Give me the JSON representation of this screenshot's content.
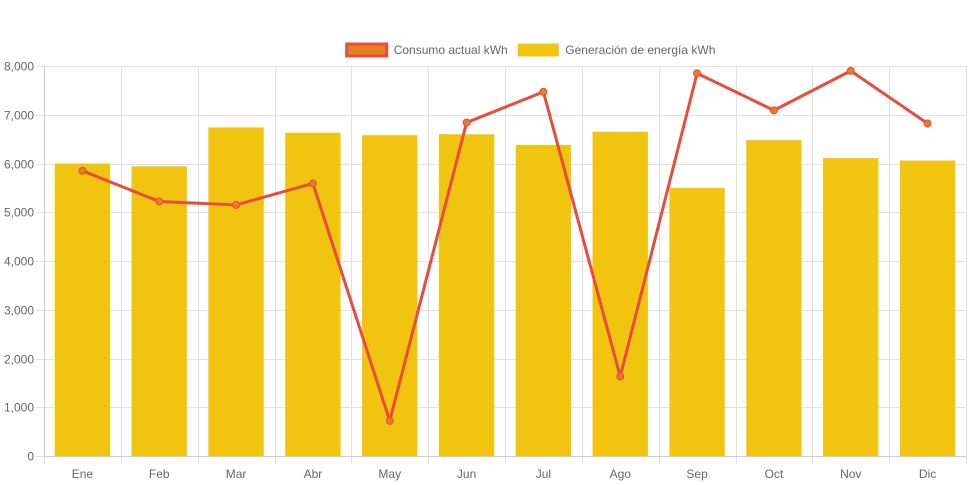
{
  "chart_data": {
    "type": "bar",
    "title": "",
    "xlabel": "",
    "ylabel": "",
    "categories": [
      "Ene",
      "Feb",
      "Mar",
      "Abr",
      "May",
      "Jun",
      "Jul",
      "Ago",
      "Sep",
      "Oct",
      "Nov",
      "Dic"
    ],
    "ylim": [
      0,
      8000
    ],
    "yticks": [
      0,
      1000,
      2000,
      3000,
      4000,
      5000,
      6000,
      7000,
      8000
    ],
    "ytick_labels": [
      "0",
      "1,000",
      "2,000",
      "3,000",
      "4,000",
      "5,000",
      "6,000",
      "7,000",
      "8,000"
    ],
    "grid": true,
    "legend_position": "top-center",
    "series": [
      {
        "name": "Consumo actual kWh",
        "type": "line",
        "color": "#e74c3c",
        "point_color": "#e67e22",
        "values": [
          5850,
          5220,
          5150,
          5590,
          720,
          6840,
          7470,
          1630,
          7850,
          7090,
          7900,
          6820
        ]
      },
      {
        "name": "Generación de energía kWh",
        "type": "bar",
        "color": "#f1c40f",
        "values": [
          6000,
          5940,
          6740,
          6630,
          6580,
          6600,
          6380,
          6650,
          5500,
          6480,
          6110,
          6060
        ]
      }
    ]
  }
}
